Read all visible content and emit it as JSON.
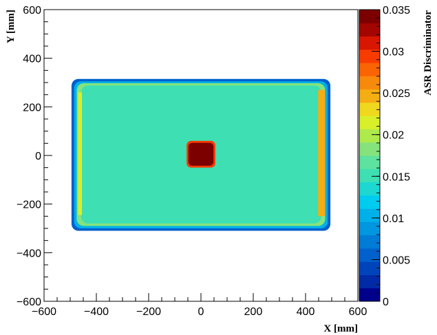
{
  "chart_data": {
    "type": "heatmap",
    "xlabel": "X [mm]",
    "ylabel": "Y [mm]",
    "zlabel": "ASR Discriminator",
    "xlim": [
      -600,
      600
    ],
    "ylim": [
      -600,
      600
    ],
    "zlim": [
      0,
      0.035
    ],
    "x_ticks": [
      -600,
      -400,
      -200,
      0,
      200,
      400,
      600
    ],
    "x_tick_labels": [
      "−600",
      "−400",
      "−200",
      "0",
      "200",
      "400",
      "600"
    ],
    "y_ticks": [
      -600,
      -400,
      -200,
      0,
      200,
      400,
      600
    ],
    "y_tick_labels": [
      "−600",
      "−400",
      "−200",
      "0",
      "200",
      "400",
      "600"
    ],
    "z_ticks": [
      0,
      0.005,
      0.01,
      0.015,
      0.02,
      0.025,
      0.03,
      0.035
    ],
    "z_tick_labels": [
      "0",
      "0.005",
      "0.01",
      "0.015",
      "0.02",
      "0.025",
      "0.03",
      "0.035"
    ],
    "colorbar_levels": 20,
    "palette": [
      "#00008b",
      "#002aa6",
      "#0044bb",
      "#0060cc",
      "#007bd6",
      "#0096e0",
      "#00b0e8",
      "#00ccef",
      "#1cd8d0",
      "#3edfb3",
      "#5ee29f",
      "#86e37c",
      "#aeea4c",
      "#d8ef2a",
      "#f0d81e",
      "#f5ad14",
      "#f88a0b",
      "#fb6402",
      "#f83b00",
      "#d91600",
      "#a30600",
      "#7c0000"
    ],
    "regions": [
      {
        "name": "detector-border",
        "x": [
          -495,
          495
        ],
        "y": [
          -310,
          315
        ],
        "value": 0.005
      },
      {
        "name": "detector-edge",
        "x": [
          -485,
          485
        ],
        "y": [
          -300,
          305
        ],
        "value": 0.011
      },
      {
        "name": "detector-rim",
        "x": [
          -475,
          475
        ],
        "y": [
          -290,
          297
        ],
        "value": 0.019
      },
      {
        "name": "detector-bulk",
        "x": [
          -458,
          460
        ],
        "y": [
          -280,
          288
        ],
        "value": 0.0155
      },
      {
        "name": "left-edge-band",
        "x": [
          -470,
          -455
        ],
        "y": [
          -245,
          260
        ],
        "value": 0.022
      },
      {
        "name": "right-edge-band",
        "x": [
          448,
          475
        ],
        "y": [
          -250,
          270
        ],
        "value": 0.025
      },
      {
        "name": "central-target-ring",
        "x": [
          -55,
          55
        ],
        "y": [
          -50,
          60
        ],
        "value": 0.03
      },
      {
        "name": "central-target",
        "x": [
          -48,
          48
        ],
        "y": [
          -42,
          52
        ],
        "value": 0.035
      }
    ]
  }
}
